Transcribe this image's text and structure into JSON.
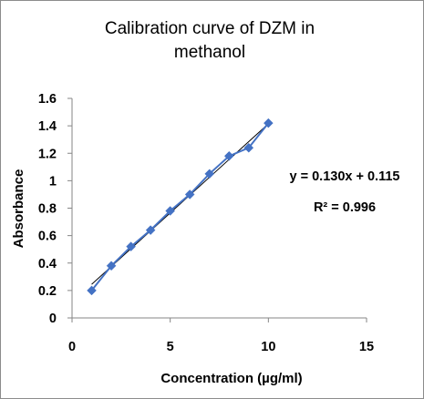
{
  "chart_data": {
    "type": "scatter",
    "title_lines": [
      "Calibration curve of DZM in",
      "methanol"
    ],
    "xlabel": "Concentration (µg/ml)",
    "ylabel": "Absorbance",
    "xlim": [
      0,
      15
    ],
    "ylim": [
      0,
      1.6
    ],
    "x_ticks": [
      "0",
      "5",
      "10",
      "15"
    ],
    "y_ticks": [
      "0",
      "0.2",
      "0.4",
      "0.6",
      "0.8",
      "1",
      "1.2",
      "1.4",
      "1.6"
    ],
    "grid": false,
    "legend": "none",
    "series": [
      {
        "x": [
          1,
          2,
          3,
          4,
          5,
          6,
          7,
          8,
          9,
          10
        ],
        "y": [
          0.2,
          0.38,
          0.52,
          0.64,
          0.78,
          0.9,
          1.05,
          1.18,
          1.24,
          1.42
        ],
        "color": "#4472C4",
        "marker": "diamond",
        "connected": true
      }
    ],
    "trendline": {
      "slope": 0.13,
      "intercept": 0.115,
      "x_range": [
        1,
        10
      ],
      "color": "#000000"
    },
    "annotations": {
      "equation": "y = 0.130x + 0.115",
      "r_squared": "R² = 0.996"
    }
  }
}
